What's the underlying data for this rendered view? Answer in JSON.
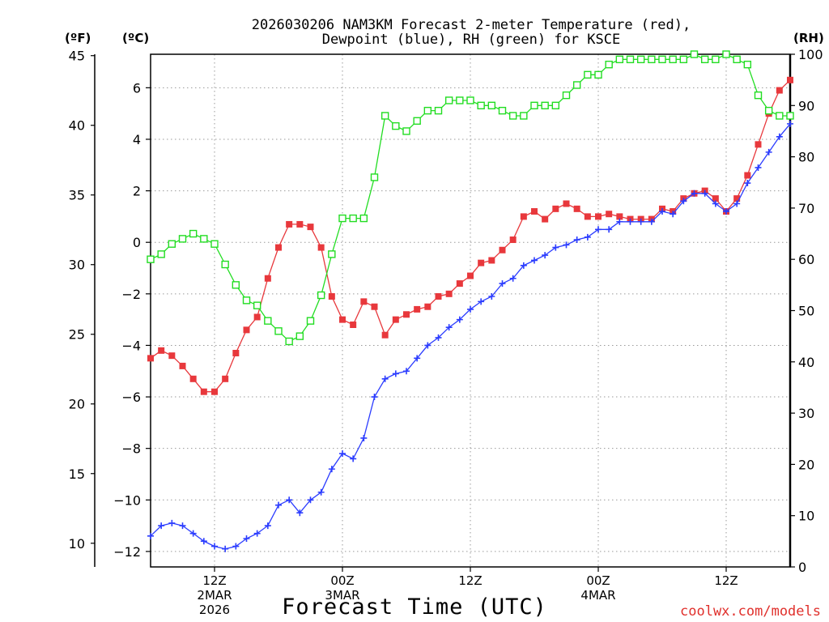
{
  "chart_data": {
    "type": "line",
    "title": [
      "2026030206 NAM3KM Forecast 2-meter Temperature (red),",
      "Dewpoint (blue), RH (green) for KSCE"
    ],
    "xlabel": "Forecast Time (UTC)",
    "credit": "coolwx.com/models",
    "units": {
      "fahrenheit": "(ºF)",
      "celsius": "(ºC)",
      "rh": "(RH)"
    },
    "x_range_hours": [
      0,
      60
    ],
    "x_ticks": [
      {
        "hour": 6,
        "lines": [
          "12Z",
          "2MAR",
          "2026"
        ]
      },
      {
        "hour": 18,
        "lines": [
          "00Z",
          "3MAR"
        ]
      },
      {
        "hour": 30,
        "lines": [
          "12Z"
        ]
      },
      {
        "hour": 42,
        "lines": [
          "00Z",
          "4MAR"
        ]
      },
      {
        "hour": 54,
        "lines": [
          "12Z"
        ]
      }
    ],
    "y_celsius": {
      "range": [
        -12.6,
        7.3
      ],
      "ticks": [
        -12,
        -10,
        -8,
        -6,
        -4,
        -2,
        0,
        2,
        4,
        6
      ]
    },
    "y_fahrenheit": {
      "range": [
        8.3,
        45.1
      ],
      "ticks": [
        10,
        15,
        20,
        25,
        30,
        35,
        40,
        45
      ]
    },
    "y_rh": {
      "range": [
        0,
        100
      ],
      "ticks": [
        0,
        10,
        20,
        30,
        40,
        50,
        60,
        70,
        80,
        90,
        100
      ]
    },
    "hours": [
      0,
      1,
      2,
      3,
      4,
      5,
      6,
      7,
      8,
      9,
      10,
      11,
      12,
      13,
      14,
      15,
      16,
      17,
      18,
      19,
      20,
      21,
      22,
      23,
      24,
      25,
      26,
      27,
      28,
      29,
      30,
      31,
      32,
      33,
      34,
      35,
      36,
      37,
      38,
      39,
      40,
      41,
      42,
      43,
      44,
      45,
      46,
      47,
      48,
      49,
      50,
      51,
      52,
      53,
      54,
      55,
      56,
      57,
      58,
      59,
      60
    ],
    "series": [
      {
        "name": "Temperature",
        "unit": "degC",
        "color": "#e8383c",
        "marker": "filled-square",
        "values": [
          -4.5,
          -4.2,
          -4.4,
          -4.8,
          -5.3,
          -5.8,
          -5.8,
          -5.3,
          -4.3,
          -3.4,
          -2.9,
          -1.4,
          -0.2,
          0.7,
          0.7,
          0.6,
          -0.2,
          -2.1,
          -3.0,
          -3.2,
          -2.3,
          -2.5,
          -3.6,
          -3.0,
          -2.8,
          -2.6,
          -2.5,
          -2.1,
          -2.0,
          -1.6,
          -1.3,
          -0.8,
          -0.7,
          -0.3,
          0.1,
          1.0,
          1.2,
          0.9,
          1.3,
          1.5,
          1.3,
          1.0,
          1.0,
          1.1,
          1.0,
          0.9,
          0.9,
          0.9,
          1.3,
          1.2,
          1.7,
          1.9,
          2.0,
          1.7,
          1.2,
          1.7,
          2.6,
          3.8,
          5.0,
          5.9,
          6.3
        ]
      },
      {
        "name": "Dewpoint",
        "unit": "degC",
        "color": "#2b3cff",
        "marker": "plus",
        "values": [
          -11.4,
          -11.0,
          -10.9,
          -11.0,
          -11.3,
          -11.6,
          -11.8,
          -11.9,
          -11.8,
          -11.5,
          -11.3,
          -11.0,
          -10.2,
          -10.0,
          -10.5,
          -10.0,
          -9.7,
          -8.8,
          -8.2,
          -8.4,
          -7.6,
          -6.0,
          -5.3,
          -5.1,
          -5.0,
          -4.5,
          -4.0,
          -3.7,
          -3.3,
          -3.0,
          -2.6,
          -2.3,
          -2.1,
          -1.6,
          -1.4,
          -0.9,
          -0.7,
          -0.5,
          -0.2,
          -0.1,
          0.1,
          0.2,
          0.5,
          0.5,
          0.8,
          0.8,
          0.8,
          0.8,
          1.2,
          1.1,
          1.6,
          1.9,
          1.9,
          1.5,
          1.2,
          1.5,
          2.3,
          2.9,
          3.5,
          4.1,
          4.6
        ]
      },
      {
        "name": "RH",
        "unit": "percent",
        "color": "#22dd22",
        "marker": "open-square",
        "values": [
          60,
          61,
          63,
          64,
          65,
          64,
          63,
          59,
          55,
          52,
          51,
          48,
          46,
          44,
          45,
          48,
          53,
          61,
          68,
          68,
          68,
          76,
          88,
          86,
          85,
          87,
          89,
          89,
          91,
          91,
          91,
          90,
          90,
          89,
          88,
          88,
          90,
          90,
          90,
          92,
          94,
          96,
          96,
          98,
          99,
          99,
          99,
          99,
          99,
          99,
          99,
          100,
          99,
          99,
          100,
          99,
          98,
          92,
          89,
          88,
          88
        ]
      }
    ]
  }
}
